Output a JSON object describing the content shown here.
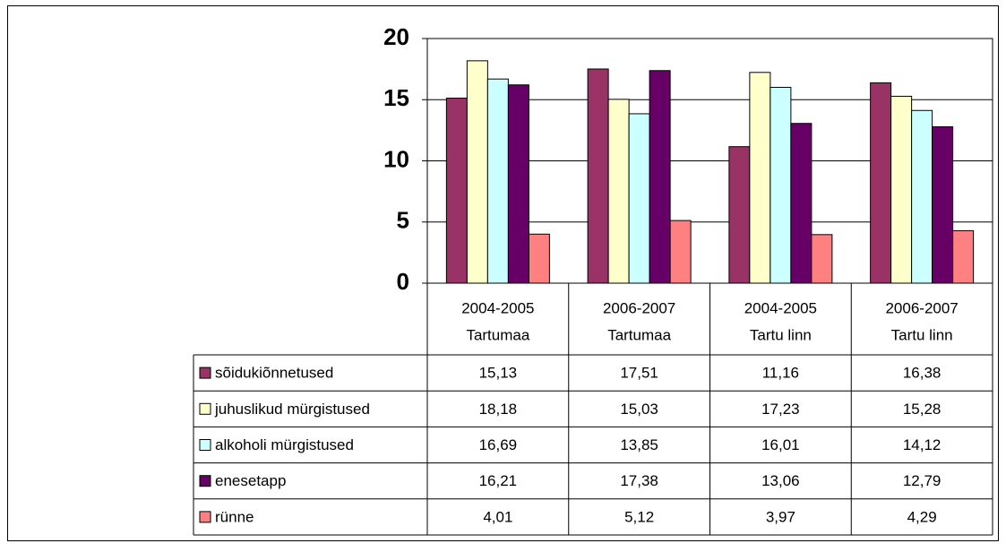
{
  "chart_data": {
    "type": "bar",
    "categories": [
      [
        "2004-2005",
        "Tartumaa"
      ],
      [
        "2006-2007",
        "Tartumaa"
      ],
      [
        "2004-2005",
        "Tartu linn"
      ],
      [
        "2006-2007",
        "Tartu linn"
      ]
    ],
    "series": [
      {
        "name": "sõidukiõnnetused",
        "color": "#993366",
        "values": [
          15.13,
          17.51,
          11.16,
          16.38
        ],
        "value_labels": [
          "15,13",
          "17,51",
          "11,16",
          "16,38"
        ]
      },
      {
        "name": "juhuslikud mürgistused",
        "color": "#ffffcc",
        "values": [
          18.18,
          15.03,
          17.23,
          15.28
        ],
        "value_labels": [
          "18,18",
          "15,03",
          "17,23",
          "15,28"
        ]
      },
      {
        "name": "alkoholi mürgistused",
        "color": "#ccffff",
        "values": [
          16.69,
          13.85,
          16.01,
          14.12
        ],
        "value_labels": [
          "16,69",
          "13,85",
          "16,01",
          "14,12"
        ]
      },
      {
        "name": "enesetapp",
        "color": "#660066",
        "values": [
          16.21,
          17.38,
          13.06,
          12.79
        ],
        "value_labels": [
          "16,21",
          "17,38",
          "13,06",
          "12,79"
        ]
      },
      {
        "name": "rünne",
        "color": "#ff8080",
        "values": [
          4.01,
          5.12,
          3.97,
          4.29
        ],
        "value_labels": [
          "4,01",
          "5,12",
          "3,97",
          "4,29"
        ]
      }
    ],
    "ylim": [
      0,
      20
    ],
    "yticks": [
      0,
      5,
      10,
      15,
      20
    ],
    "grid": true
  }
}
